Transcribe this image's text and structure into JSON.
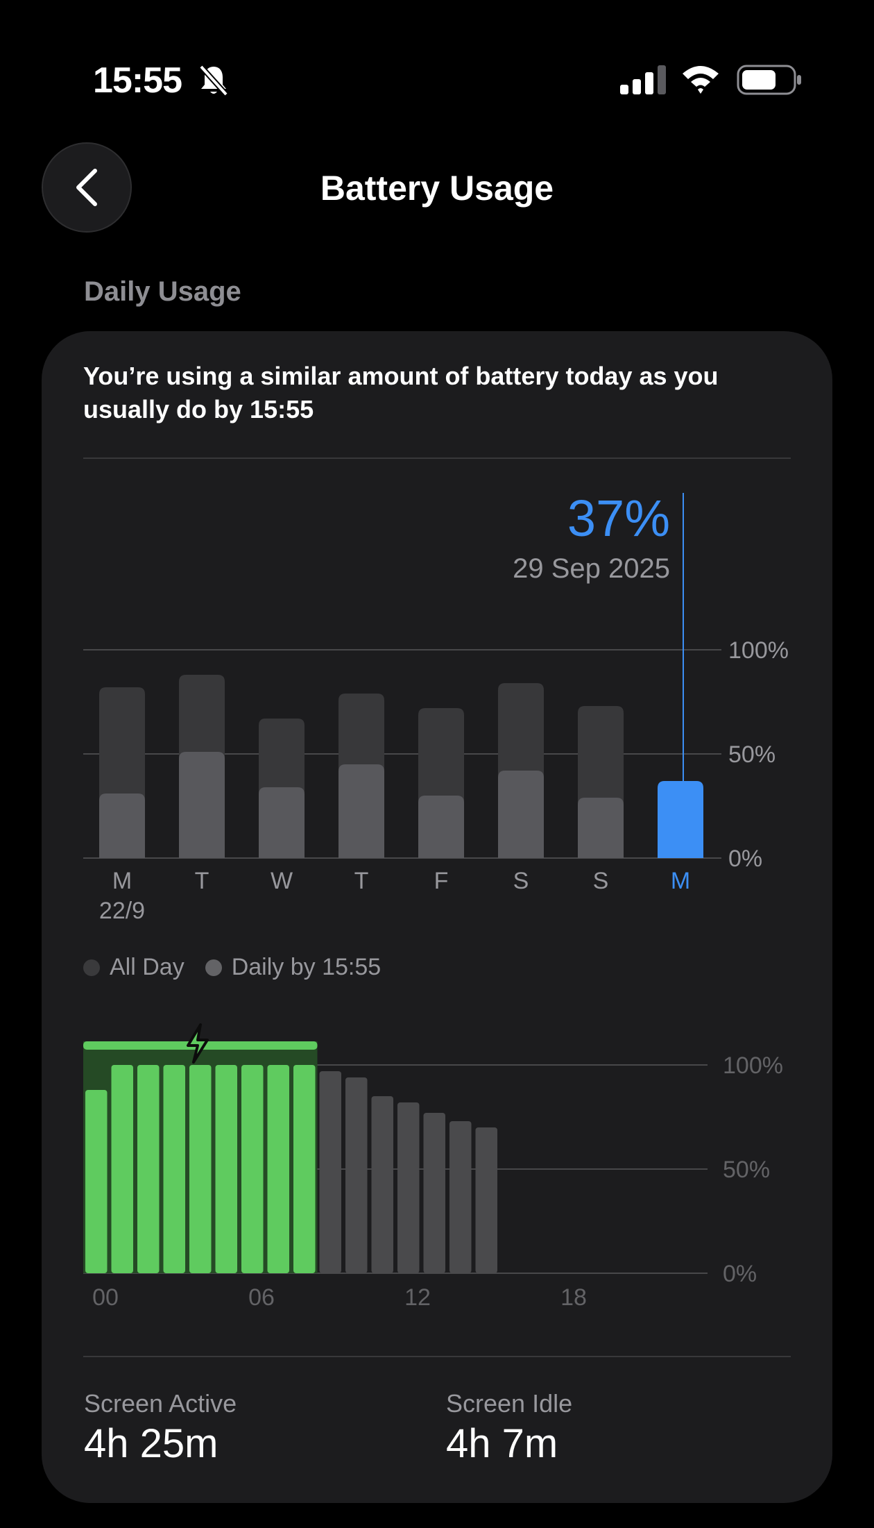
{
  "status_bar": {
    "time": "15:55"
  },
  "header": {
    "title": "Battery Usage"
  },
  "section": {
    "label": "Daily Usage"
  },
  "insight": {
    "text": "You’re using a similar amount of battery today as you usually do by 15:55"
  },
  "selection": {
    "value": "37%",
    "date": "29 Sep 2025"
  },
  "colors": {
    "accent": "#3c8ff5",
    "charging_green": "#5fcb5f",
    "bar_gray": "#4a4a4c",
    "card": "#1c1c1e"
  },
  "legend": {
    "all_day": "All Day",
    "daily_by": "Daily by 15:55"
  },
  "stats": {
    "screen_active_label": "Screen Active",
    "screen_active_value": "4h 25m",
    "screen_idle_label": "Screen Idle",
    "screen_idle_value": "4h 7m"
  },
  "chart_data": [
    {
      "type": "bar",
      "categories": [
        "M",
        "T",
        "W",
        "T",
        "F",
        "S",
        "S",
        "M"
      ],
      "date_label_first": "22/9",
      "selected_index": 7,
      "series": [
        {
          "name": "All Day",
          "values": [
            82,
            88,
            67,
            79,
            72,
            84,
            73,
            37
          ]
        },
        {
          "name": "Daily by 15:55",
          "values": [
            31,
            51,
            34,
            45,
            30,
            42,
            29,
            37
          ]
        }
      ],
      "ytick_labels": [
        "0%",
        "50%",
        "100%"
      ],
      "ylim": [
        0,
        100
      ]
    },
    {
      "type": "bar",
      "xtick_labels": [
        "00",
        "06",
        "12",
        "18"
      ],
      "ytick_labels": [
        "0%",
        "50%",
        "100%"
      ],
      "ylim": [
        0,
        100
      ],
      "x_hours": 24,
      "charging_hours": [
        0,
        9
      ],
      "values": [
        88,
        100,
        100,
        100,
        100,
        100,
        100,
        100,
        100,
        97,
        94,
        85,
        82,
        77,
        73,
        70
      ]
    }
  ]
}
